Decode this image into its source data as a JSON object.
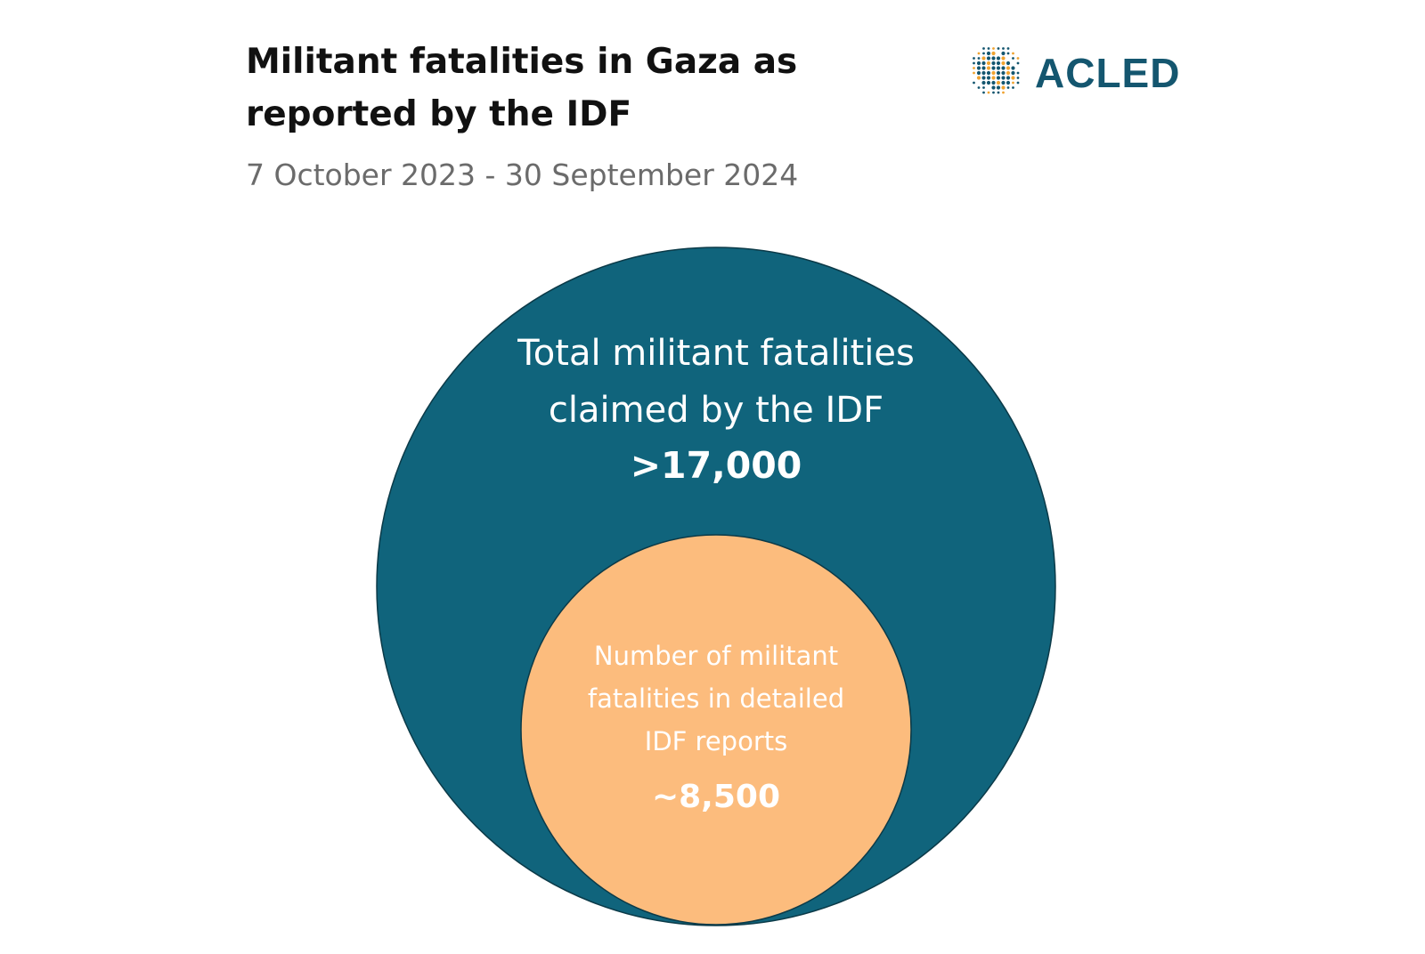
{
  "header": {
    "title": "Militant fatalities in Gaza as reported by the IDF",
    "subtitle": "7 October 2023 - 30 September 2024"
  },
  "logo": {
    "text": "ACLED",
    "icon": "globe-dots-icon"
  },
  "colors": {
    "outer_circle": "#10647c",
    "inner_circle": "#fcbc7d",
    "outer_stroke": "#0b3a48",
    "logo_blue": "#14566f",
    "logo_orange": "#f0a330",
    "text_on_circle": "#ffffff"
  },
  "chart_data": {
    "type": "nested-circles",
    "title": "Militant fatalities in Gaza as reported by the IDF",
    "subtitle": "7 October 2023 - 30 September 2024",
    "circles": [
      {
        "label_lines": [
          "Total militant fatalities",
          "claimed by the IDF"
        ],
        "value_label": ">17,000",
        "value": 17000
      },
      {
        "label_lines": [
          "Number of militant",
          "fatalities in detailed",
          "IDF reports"
        ],
        "value_label": "~8,500",
        "value": 8500
      }
    ]
  }
}
